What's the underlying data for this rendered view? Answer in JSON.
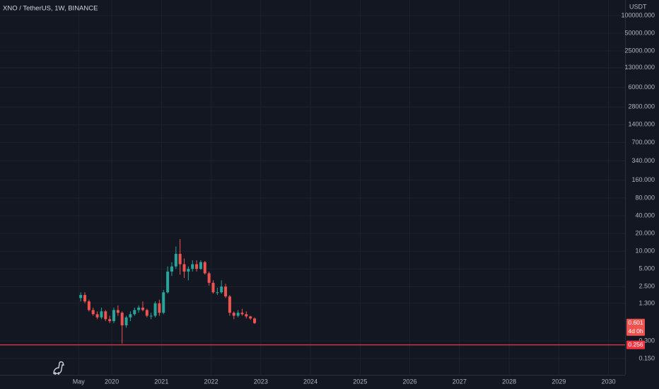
{
  "chart_data": {
    "type": "candlestick",
    "title": "XNO / TetherUS, 1W, BINANCE",
    "y_unit": "USDT",
    "log_scale": true,
    "grid": true,
    "up_color": "#26a69a",
    "down_color": "#ef5350",
    "x": [
      "2019-05",
      "2019-06",
      "2019-07",
      "2019-08",
      "2019-09",
      "2019-10",
      "2019-11",
      "2019-12",
      "2020-01",
      "2020-02",
      "2020-03",
      "2020-04",
      "2020-05",
      "2020-06",
      "2020-07",
      "2020-08",
      "2020-09",
      "2020-10",
      "2020-11",
      "2020-12",
      "2021-01",
      "2021-02",
      "2021-03",
      "2021-04",
      "2021-05",
      "2021-06",
      "2021-07",
      "2021-08",
      "2021-09",
      "2021-10",
      "2021-11",
      "2021-12",
      "2022-01",
      "2022-02",
      "2022-03",
      "2022-04",
      "2022-05",
      "2022-06",
      "2022-07",
      "2022-08",
      "2022-09",
      "2022-10",
      "2022-11"
    ],
    "open": [
      1.6,
      1.8,
      1.4,
      1.0,
      0.85,
      0.75,
      0.95,
      0.7,
      0.65,
      1.0,
      0.9,
      0.55,
      0.75,
      0.85,
      1.0,
      1.1,
      1.0,
      0.8,
      0.8,
      1.3,
      0.9,
      2.0,
      4.5,
      5.5,
      9,
      6,
      4.5,
      5.0,
      6.0,
      5.0,
      6.5,
      4.2,
      2.9,
      2.0,
      2.0,
      2.5,
      1.7,
      0.9,
      0.8,
      0.9,
      0.85,
      0.78,
      0.72
    ],
    "high": [
      2.0,
      2.0,
      1.5,
      1.1,
      0.95,
      1.1,
      1.0,
      0.8,
      1.1,
      1.2,
      0.95,
      0.8,
      0.95,
      1.1,
      1.2,
      1.4,
      1.05,
      0.9,
      1.4,
      1.5,
      2.2,
      5.5,
      6.5,
      12,
      16,
      7.5,
      5.5,
      7.0,
      7.0,
      7.0,
      6.8,
      4.5,
      3.2,
      2.4,
      3.2,
      2.8,
      1.8,
      0.95,
      1.0,
      1.05,
      0.95,
      0.8,
      0.75
    ],
    "low": [
      1.4,
      1.3,
      0.95,
      0.8,
      0.7,
      0.7,
      0.65,
      0.6,
      0.6,
      0.8,
      0.27,
      0.5,
      0.65,
      0.8,
      0.9,
      0.95,
      0.75,
      0.7,
      0.75,
      0.8,
      0.85,
      1.9,
      3.8,
      5.0,
      4.0,
      3.5,
      3.2,
      4.5,
      4.5,
      4.8,
      4.0,
      2.6,
      1.9,
      1.8,
      1.9,
      1.6,
      0.8,
      0.7,
      0.75,
      0.8,
      0.72,
      0.68,
      0.58
    ],
    "close": [
      1.8,
      1.4,
      1.0,
      0.85,
      0.75,
      0.95,
      0.7,
      0.65,
      1.0,
      0.9,
      0.55,
      0.75,
      0.85,
      1.0,
      1.1,
      1.0,
      0.8,
      0.8,
      1.3,
      0.9,
      2.0,
      4.5,
      5.5,
      9,
      6,
      4.5,
      5.0,
      6.0,
      5.0,
      6.5,
      4.2,
      2.9,
      2.0,
      2.0,
      2.5,
      1.7,
      0.9,
      0.8,
      0.9,
      0.85,
      0.78,
      0.72,
      0.601
    ],
    "countdown": "4d 0h",
    "hline": 0.256,
    "hline_color": "#f23645",
    "xlim": [
      "2017-10",
      "2030-05"
    ],
    "xticks": [
      {
        "value": "2019-05",
        "label": "May"
      },
      {
        "value": "2020-01",
        "label": "2020"
      },
      {
        "value": "2021-01",
        "label": "2021"
      },
      {
        "value": "2022-01",
        "label": "2022"
      },
      {
        "value": "2023-01",
        "label": "2023"
      },
      {
        "value": "2024-01",
        "label": "2024"
      },
      {
        "value": "2025-01",
        "label": "2025"
      },
      {
        "value": "2026-01",
        "label": "2026"
      },
      {
        "value": "2027-01",
        "label": "2027"
      },
      {
        "value": "2028-01",
        "label": "2028"
      },
      {
        "value": "2029-01",
        "label": "2029"
      },
      {
        "value": "2030-01",
        "label": "2030"
      }
    ],
    "ylim": [
      0.0794,
      183600
    ],
    "yticks": [
      {
        "value": 0.15,
        "label": "0.150"
      },
      {
        "value": 0.3,
        "label": "0.300"
      },
      {
        "value": 1.3,
        "label": "1.300"
      },
      {
        "value": 2.5,
        "label": "2.500"
      },
      {
        "value": 5,
        "label": "5.000"
      },
      {
        "value": 10,
        "label": "10.000"
      },
      {
        "value": 20,
        "label": "20.000"
      },
      {
        "value": 40,
        "label": "40.000"
      },
      {
        "value": 80,
        "label": "80.000"
      },
      {
        "value": 160,
        "label": "160.000"
      },
      {
        "value": 340,
        "label": "340.000"
      },
      {
        "value": 700,
        "label": "700.000"
      },
      {
        "value": 1400,
        "label": "1400.000"
      },
      {
        "value": 2800,
        "label": "2800.000"
      },
      {
        "value": 6000,
        "label": "6000.000"
      },
      {
        "value": 13000,
        "label": "13000.000"
      },
      {
        "value": 25000,
        "label": "25000.000"
      },
      {
        "value": 50000,
        "label": "50000.000"
      },
      {
        "value": 100000,
        "label": "100000.000"
      }
    ]
  }
}
